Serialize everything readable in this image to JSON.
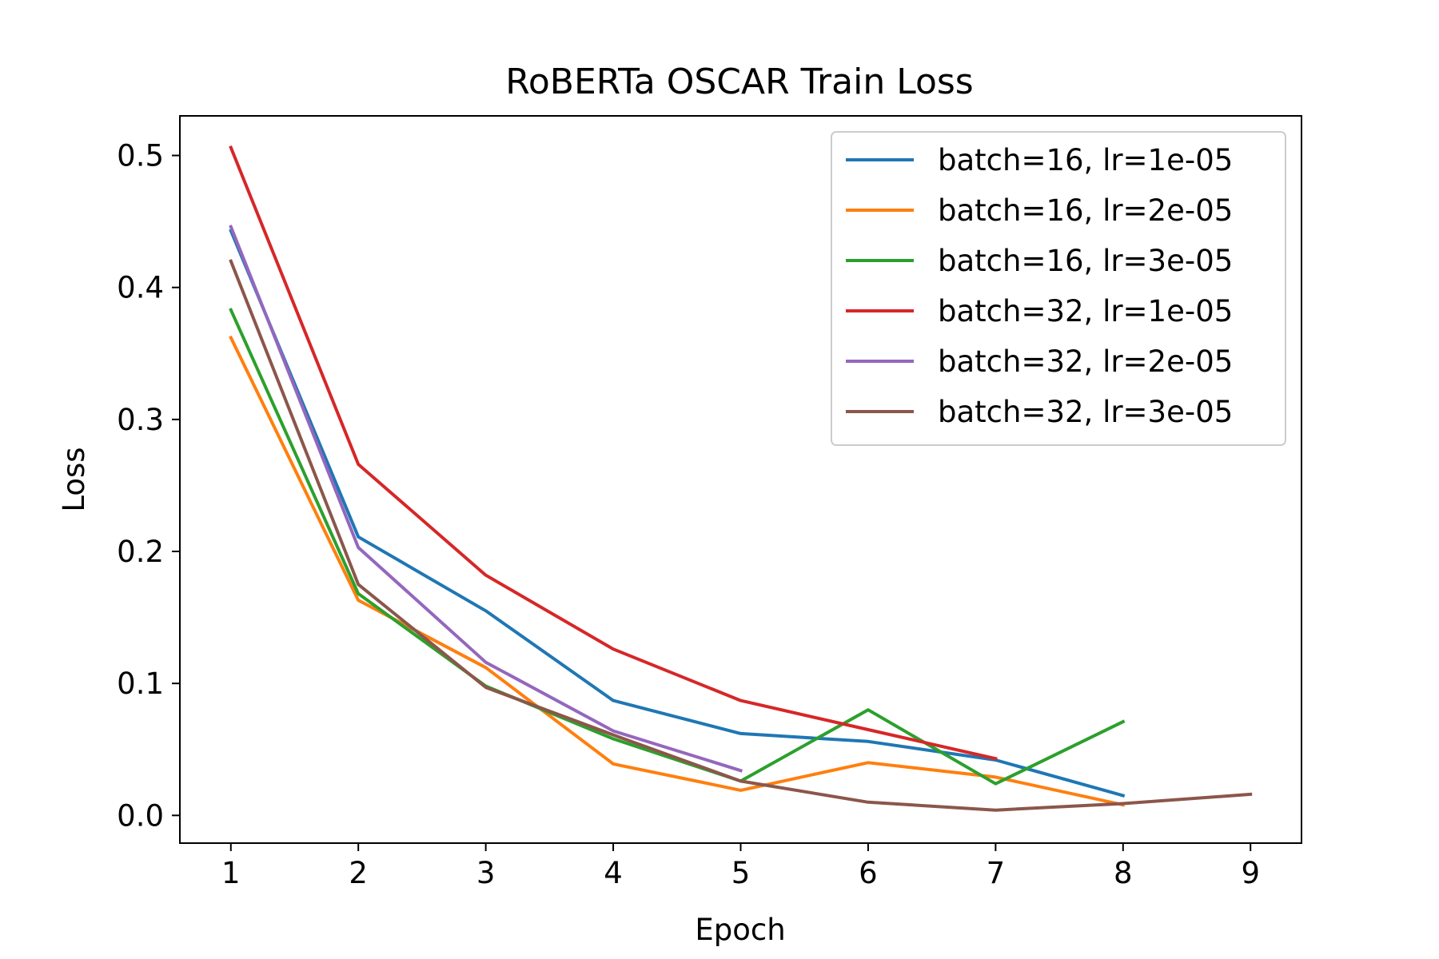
{
  "chart_data": {
    "type": "line",
    "title": "RoBERTa OSCAR Train Loss",
    "xlabel": "Epoch",
    "ylabel": "Loss",
    "xlim": [
      0.6,
      9.4
    ],
    "ylim": [
      -0.021,
      0.53
    ],
    "xticks": [
      1,
      2,
      3,
      4,
      5,
      6,
      7,
      8,
      9
    ],
    "yticks": [
      0.0,
      0.1,
      0.2,
      0.3,
      0.4,
      0.5
    ],
    "ytick_labels": [
      "0.0",
      "0.1",
      "0.2",
      "0.3",
      "0.4",
      "0.5"
    ],
    "grid": false,
    "legend_position": "top-right",
    "series": [
      {
        "name": "batch=16, lr=1e-05",
        "color": "#1f77b4",
        "x": [
          1,
          2,
          3,
          4,
          5,
          6,
          7,
          8
        ],
        "y": [
          0.443,
          0.211,
          0.155,
          0.087,
          0.062,
          0.056,
          0.042,
          0.015
        ]
      },
      {
        "name": "batch=16, lr=2e-05",
        "color": "#ff7f0e",
        "x": [
          1,
          2,
          3,
          4,
          5,
          6,
          7,
          8
        ],
        "y": [
          0.362,
          0.163,
          0.112,
          0.039,
          0.019,
          0.04,
          0.029,
          0.008
        ]
      },
      {
        "name": "batch=16, lr=3e-05",
        "color": "#2ca02c",
        "x": [
          1,
          2,
          3,
          4,
          5,
          6,
          7,
          8
        ],
        "y": [
          0.383,
          0.168,
          0.098,
          0.058,
          0.026,
          0.08,
          0.024,
          0.071
        ]
      },
      {
        "name": "batch=32, lr=1e-05",
        "color": "#d62728",
        "x": [
          1,
          2,
          3,
          4,
          5,
          6,
          7
        ],
        "y": [
          0.506,
          0.266,
          0.182,
          0.126,
          0.087,
          0.065,
          0.043
        ]
      },
      {
        "name": "batch=32, lr=2e-05",
        "color": "#9467bd",
        "x": [
          1,
          2,
          3,
          4,
          5
        ],
        "y": [
          0.446,
          0.203,
          0.116,
          0.064,
          0.034
        ]
      },
      {
        "name": "batch=32, lr=3e-05",
        "color": "#8c564b",
        "x": [
          1,
          2,
          3,
          4,
          5,
          6,
          7,
          8,
          9
        ],
        "y": [
          0.42,
          0.175,
          0.097,
          0.061,
          0.026,
          0.01,
          0.004,
          0.009,
          0.016
        ]
      }
    ]
  }
}
